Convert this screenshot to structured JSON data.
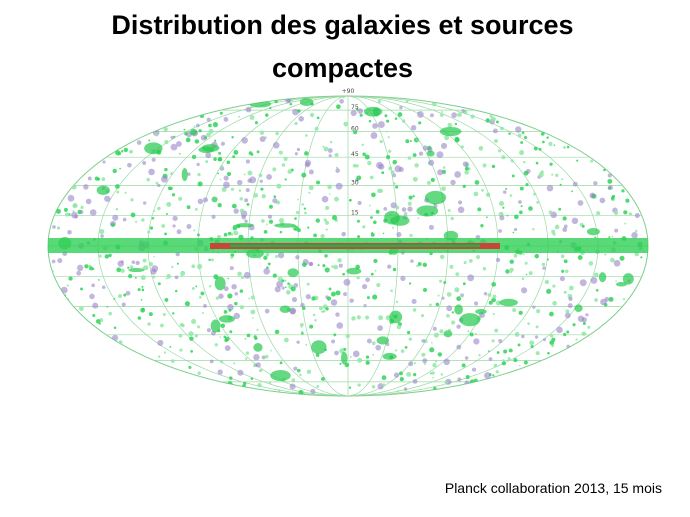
{
  "title": "Distribution des galaxies et sources compactes",
  "map": {
    "pole_label": "+90",
    "latitude_labels": [
      "75",
      "60",
      "45",
      "30",
      "15"
    ]
  },
  "caption": "Planck collaboration 2013, 15 mois"
}
